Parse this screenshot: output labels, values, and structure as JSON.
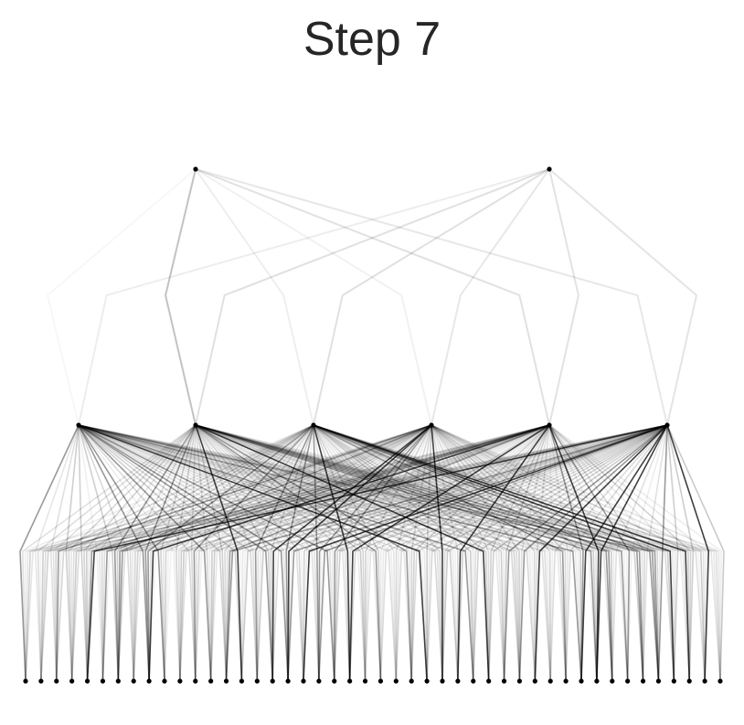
{
  "title": "Step 7"
}
